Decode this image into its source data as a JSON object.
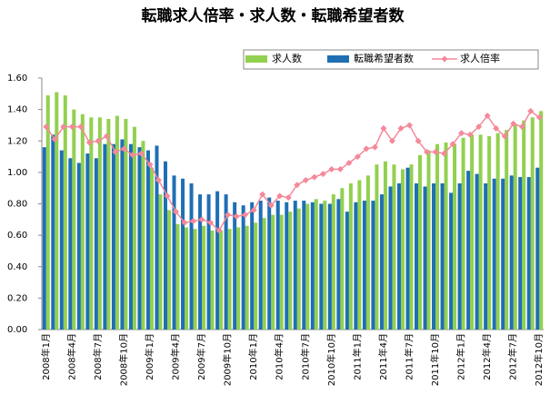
{
  "chart_data": {
    "type": "bar-line",
    "title": "転職求人倍率・求人数・転職希望者数",
    "categories": [
      "2008年1月",
      null,
      null,
      "2008年4月",
      null,
      null,
      "2008年7月",
      null,
      null,
      "2008年10月",
      null,
      null,
      "2009年1月",
      null,
      null,
      "2009年4月",
      null,
      null,
      "2009年7月",
      null,
      null,
      "2009年10月",
      null,
      null,
      "2010年1月",
      null,
      null,
      "2010年4月",
      null,
      null,
      "2010年7月",
      null,
      null,
      "2010年10月",
      null,
      null,
      "2011年1月",
      null,
      null,
      "2011年4月",
      null,
      null,
      "2011年7月",
      null,
      null,
      "2011年10月",
      null,
      null,
      "2012年1月",
      null,
      null,
      "2012年4月",
      null,
      null,
      "2012年7月",
      null,
      null,
      "2012年10月"
    ],
    "series": [
      {
        "name": "求人数",
        "color": "#92d050",
        "kind": "bar",
        "values": [
          1.49,
          1.51,
          1.49,
          1.4,
          1.37,
          1.35,
          1.35,
          1.34,
          1.36,
          1.34,
          1.29,
          1.2,
          1.03,
          0.86,
          0.76,
          0.67,
          0.65,
          0.64,
          0.66,
          0.63,
          0.63,
          0.64,
          0.65,
          0.66,
          0.68,
          0.71,
          0.73,
          0.73,
          0.75,
          0.77,
          0.8,
          0.83,
          0.82,
          0.86,
          0.9,
          0.93,
          0.95,
          0.98,
          1.05,
          1.07,
          1.05,
          1.02,
          1.05,
          1.11,
          1.14,
          1.18,
          1.19,
          1.18,
          1.22,
          1.24,
          1.24,
          1.23,
          1.25,
          1.27,
          1.3,
          1.33,
          1.35,
          1.39
        ]
      },
      {
        "name": "転職希望者数",
        "color": "#1f6fb4",
        "kind": "bar",
        "values": [
          1.16,
          1.24,
          1.14,
          1.09,
          1.06,
          1.12,
          1.09,
          1.18,
          1.18,
          1.21,
          1.18,
          1.16,
          1.14,
          1.17,
          1.07,
          0.98,
          0.96,
          0.93,
          0.86,
          0.86,
          0.88,
          0.86,
          0.81,
          0.79,
          0.81,
          0.82,
          0.84,
          0.82,
          0.81,
          0.82,
          0.82,
          0.81,
          0.8,
          0.8,
          0.83,
          0.75,
          0.81,
          0.82,
          0.82,
          0.86,
          0.91,
          0.93,
          1.03,
          0.93,
          0.91,
          0.93,
          0.93,
          0.87,
          0.93,
          1.01,
          0.99,
          0.93,
          0.96,
          0.96,
          0.98,
          0.97,
          0.97,
          1.03
        ]
      },
      {
        "name": "求人倍率",
        "color": "#f4899a",
        "kind": "line",
        "values": [
          1.29,
          1.21,
          1.29,
          1.29,
          1.29,
          1.19,
          1.2,
          1.23,
          1.13,
          1.15,
          1.11,
          1.12,
          1.05,
          0.95,
          0.85,
          0.75,
          0.68,
          0.69,
          0.7,
          0.68,
          0.63,
          0.73,
          0.72,
          0.73,
          0.76,
          0.86,
          0.79,
          0.85,
          0.84,
          0.92,
          0.95,
          0.97,
          0.99,
          1.02,
          1.02,
          1.06,
          1.1,
          1.15,
          1.16,
          1.28,
          1.2,
          1.28,
          1.3,
          1.2,
          1.13,
          1.13,
          1.12,
          1.18,
          1.25,
          1.24,
          1.29,
          1.36,
          1.28,
          1.23,
          1.31,
          1.29,
          1.39,
          1.35
        ]
      }
    ],
    "ylim": [
      0,
      1.6
    ],
    "yticks": [
      {
        "value": 0,
        "label": "0.00"
      },
      {
        "value": 0.2,
        "label": "0.20"
      },
      {
        "value": 0.4,
        "label": "0.40"
      },
      {
        "value": 0.6,
        "label": "0.60"
      },
      {
        "value": 0.8,
        "label": "0.80"
      },
      {
        "value": 1,
        "label": "1.00"
      },
      {
        "value": 1.2,
        "label": "1.20"
      },
      {
        "value": 1.4,
        "label": "1.40"
      },
      {
        "value": 1.6,
        "label": "1.60"
      }
    ],
    "grid": false
  }
}
